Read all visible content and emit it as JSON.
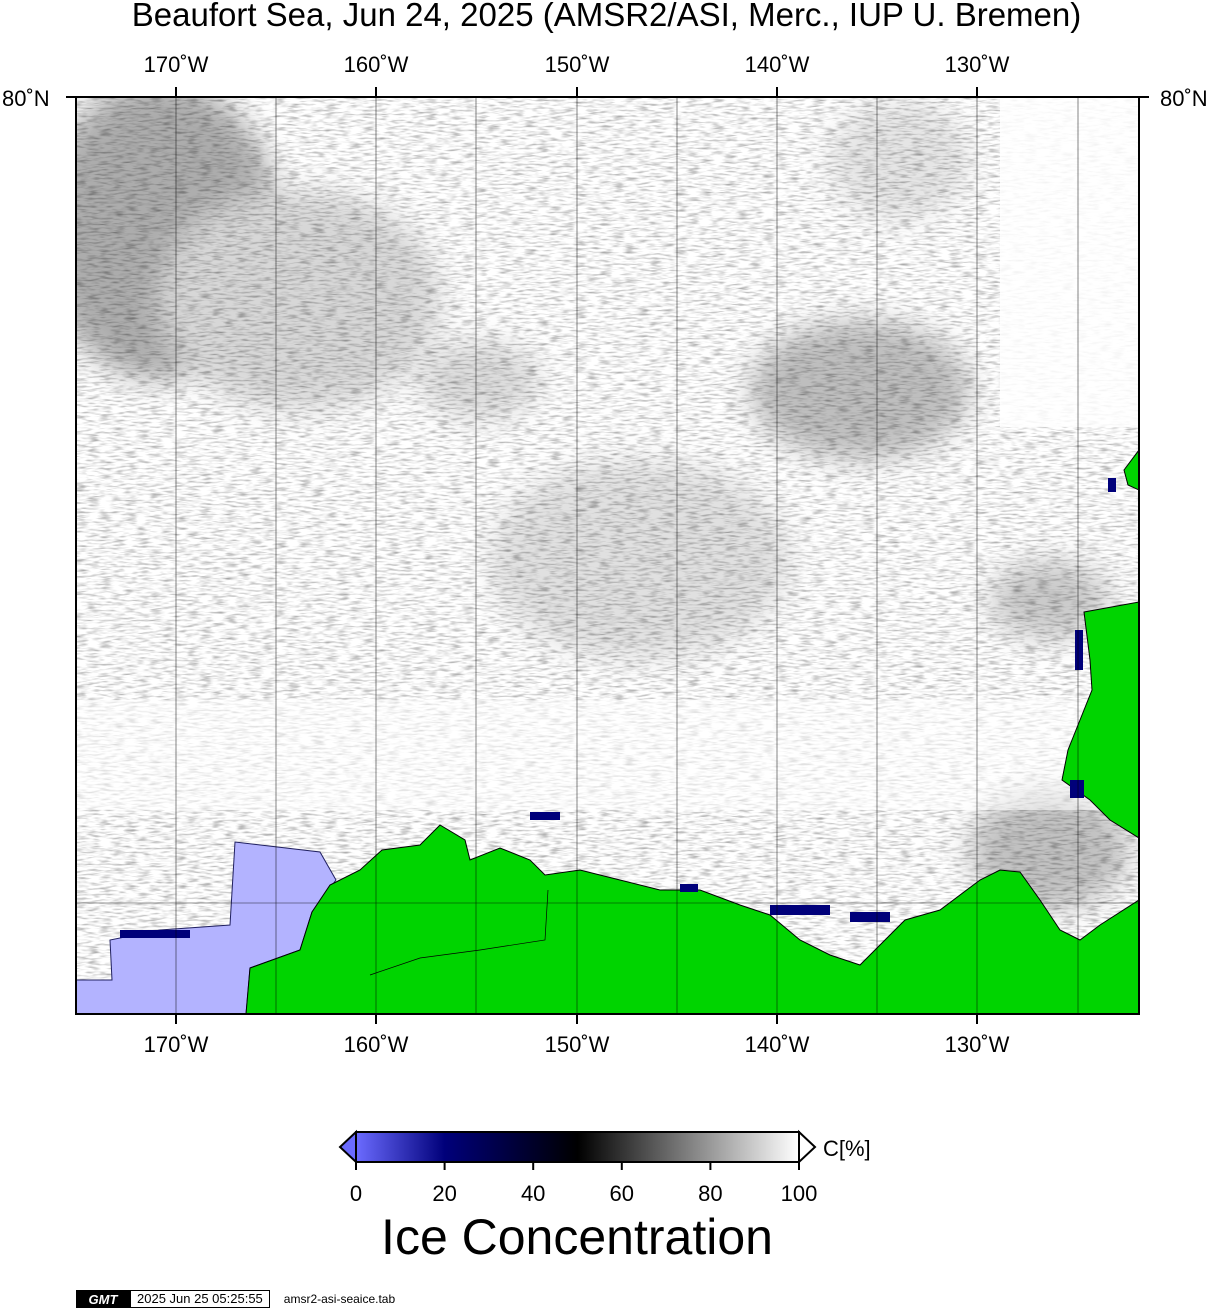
{
  "title": "Beaufort Sea, Jun 24, 2025 (AMSR2/ASI, Merc., IUP U. Bremen)",
  "map": {
    "longitude_labels": [
      "170˚W",
      "160˚W",
      "150˚W",
      "140˚W",
      "130˚W"
    ],
    "latitude_labels": [
      "80˚N",
      "80˚N"
    ],
    "colors": {
      "land": "#00d400",
      "shallow_water": "#b3b3ff",
      "ocean": "#ffffff",
      "ice_dark": "#000000",
      "low_concentration": "#000080"
    }
  },
  "colorbar": {
    "title": "Ice Concentration",
    "unit_label": "C[%]",
    "tick_labels": [
      "0",
      "20",
      "40",
      "60",
      "80",
      "100"
    ],
    "range": [
      0,
      100
    ],
    "stops": [
      {
        "value": 0,
        "color": "#6b6bff"
      },
      {
        "value": 20,
        "color": "#00007a"
      },
      {
        "value": 50,
        "color": "#000000"
      },
      {
        "value": 100,
        "color": "#ffffff"
      }
    ]
  },
  "footer": {
    "logo_text": "GMT",
    "timestamp": "2025 Jun 25 05:25:55",
    "filename": "amsr2-asi-seaice.tab"
  }
}
